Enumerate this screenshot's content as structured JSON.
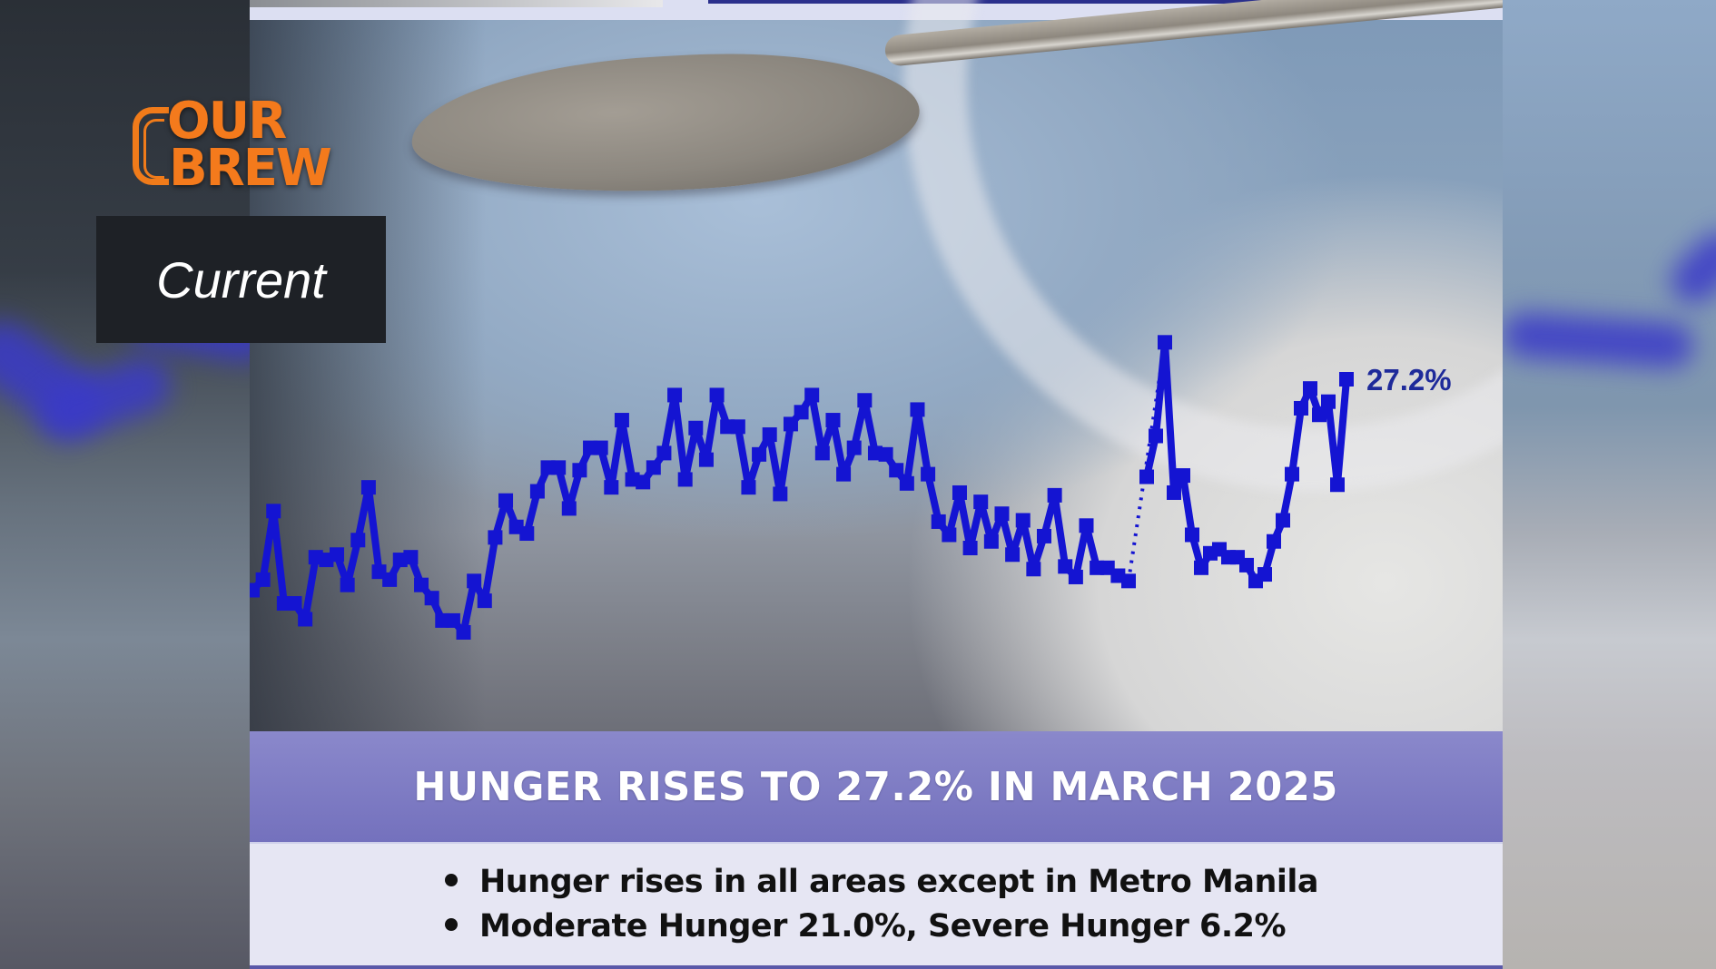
{
  "brand": {
    "logo_line1": "OUR",
    "logo_line2": "BREW",
    "badge_label": "Current",
    "logo_color": "#f47a1c"
  },
  "headline": {
    "title": "HUNGER RISES TO 27.2% IN MARCH 2025",
    "bullets": [
      "Hunger rises in all areas except in Metro Manila",
      "Moderate Hunger 21.0%, Severe Hunger 6.2%"
    ],
    "band_color": "#7f7cc4"
  },
  "chart_data": {
    "type": "line",
    "title": "HUNGER RISES TO 27.2% IN MARCH 2025",
    "xlabel": "",
    "ylabel": "",
    "grid": false,
    "legend": "none",
    "series_color": "#1414d2",
    "end_label": "27.2%",
    "annotations": [
      {
        "text": "27.2%",
        "at": "last point"
      }
    ],
    "note": "Values estimated from pixel positions; calibrated so the last point = 27.2%. No axes or tick labels are shown. Dotted segment marks a gap in the series.",
    "series": [
      {
        "name": "Hunger (%)",
        "values": [
          11.2,
          12.0,
          17.2,
          10.2,
          10.2,
          9.0,
          13.7,
          13.5,
          13.9,
          11.6,
          15.0,
          19.0,
          12.6,
          12.0,
          13.5,
          13.7,
          11.6,
          10.6,
          8.9,
          8.9,
          8.0,
          11.9,
          10.4,
          15.2,
          18.0,
          16.0,
          15.5,
          18.7,
          20.5,
          20.5,
          17.4,
          20.3,
          22.0,
          22.0,
          19.0,
          24.1,
          19.6,
          19.4,
          20.5,
          21.6,
          26.0,
          19.6,
          23.5,
          21.1,
          26.0,
          23.6,
          23.6,
          19.0,
          21.5,
          23.0,
          18.5,
          23.8,
          24.7,
          26.0,
          21.6,
          24.1,
          20.0,
          22.0,
          25.6,
          21.6,
          21.5,
          20.3,
          19.3,
          24.9,
          20.0,
          16.4,
          15.4,
          18.6,
          14.4,
          17.9,
          14.9,
          17.0,
          13.9,
          16.5,
          12.8,
          15.3,
          18.4,
          13.0,
          12.2,
          16.1,
          12.9,
          12.9,
          12.3,
          11.9
        ],
        "gap_then": [
          19.8,
          22.9,
          30.0,
          18.6,
          19.9,
          15.4,
          12.9,
          14.0,
          14.3,
          13.7,
          13.7,
          13.1,
          11.9,
          12.4,
          14.9,
          16.5,
          20.0,
          25.0,
          26.5,
          24.5,
          25.5,
          19.2,
          27.2
        ]
      }
    ]
  }
}
